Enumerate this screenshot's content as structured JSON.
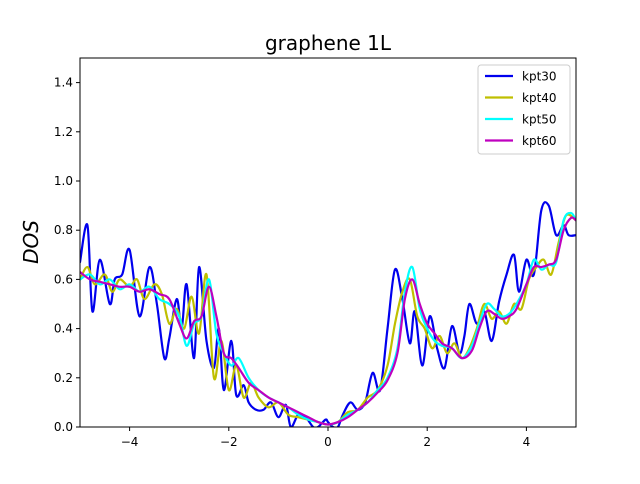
{
  "chart_data": {
    "type": "line",
    "title": "graphene 1L",
    "xlabel": "",
    "ylabel": "DOS",
    "xlim": [
      -5,
      5
    ],
    "ylim": [
      0,
      1.5
    ],
    "xticks": [
      -4,
      -2,
      0,
      2,
      4
    ],
    "xtick_labels": [
      "−4",
      "−2",
      "0",
      "2",
      "4"
    ],
    "yticks": [
      0.0,
      0.2,
      0.4,
      0.6,
      0.8,
      1.0,
      1.2,
      1.4
    ],
    "ytick_labels": [
      "0.0",
      "0.2",
      "0.4",
      "0.6",
      "0.8",
      "1.0",
      "1.2",
      "1.4"
    ],
    "grid": false,
    "legend_position": "top-right",
    "series": [
      {
        "name": "kpt30",
        "color": "#0000ee",
        "x": [
          -5.0,
          -4.85,
          -4.75,
          -4.6,
          -4.4,
          -4.3,
          -4.15,
          -4.0,
          -3.8,
          -3.6,
          -3.45,
          -3.3,
          -3.2,
          -3.05,
          -2.95,
          -2.85,
          -2.7,
          -2.6,
          -2.45,
          -2.3,
          -2.2,
          -2.1,
          -1.95,
          -1.85,
          -1.7,
          -1.6,
          -1.45,
          -1.3,
          -1.15,
          -1.0,
          -0.85,
          -0.75,
          -0.6,
          -0.45,
          -0.3,
          -0.2,
          -0.05,
          0.0,
          0.1,
          0.2,
          0.3,
          0.45,
          0.6,
          0.75,
          0.9,
          1.05,
          1.2,
          1.35,
          1.5,
          1.65,
          1.75,
          1.9,
          2.05,
          2.2,
          2.35,
          2.5,
          2.65,
          2.75,
          2.85,
          3.0,
          3.15,
          3.3,
          3.45,
          3.6,
          3.75,
          3.85,
          4.0,
          4.15,
          4.3,
          4.45,
          4.6,
          4.75,
          4.85,
          5.0
        ],
        "y": [
          0.67,
          0.82,
          0.47,
          0.68,
          0.5,
          0.6,
          0.62,
          0.72,
          0.45,
          0.65,
          0.5,
          0.28,
          0.36,
          0.52,
          0.4,
          0.58,
          0.28,
          0.65,
          0.35,
          0.24,
          0.4,
          0.15,
          0.35,
          0.13,
          0.17,
          0.1,
          0.07,
          0.07,
          0.1,
          0.04,
          0.09,
          0.0,
          0.05,
          0.04,
          0.0,
          0.0,
          0.03,
          0.02,
          0.0,
          0.0,
          0.05,
          0.1,
          0.07,
          0.1,
          0.22,
          0.15,
          0.4,
          0.64,
          0.52,
          0.34,
          0.47,
          0.25,
          0.45,
          0.32,
          0.24,
          0.41,
          0.3,
          0.37,
          0.5,
          0.42,
          0.47,
          0.35,
          0.51,
          0.62,
          0.7,
          0.55,
          0.68,
          0.62,
          0.88,
          0.9,
          0.78,
          0.82,
          0.78,
          0.78
        ]
      },
      {
        "name": "kpt40",
        "color": "#bfbf00",
        "x": [
          -5.0,
          -4.85,
          -4.7,
          -4.5,
          -4.35,
          -4.2,
          -4.0,
          -3.85,
          -3.7,
          -3.5,
          -3.35,
          -3.2,
          -3.05,
          -2.9,
          -2.75,
          -2.6,
          -2.45,
          -2.3,
          -2.15,
          -2.0,
          -1.85,
          -1.7,
          -1.55,
          -1.4,
          -1.2,
          -1.0,
          -0.8,
          -0.6,
          -0.4,
          -0.2,
          0.0,
          0.2,
          0.4,
          0.6,
          0.8,
          1.0,
          1.2,
          1.35,
          1.5,
          1.65,
          1.8,
          1.95,
          2.1,
          2.25,
          2.4,
          2.55,
          2.7,
          2.85,
          3.0,
          3.15,
          3.3,
          3.45,
          3.6,
          3.75,
          3.9,
          4.05,
          4.2,
          4.35,
          4.5,
          4.65,
          4.8,
          5.0
        ],
        "y": [
          0.6,
          0.65,
          0.58,
          0.62,
          0.55,
          0.6,
          0.57,
          0.6,
          0.52,
          0.58,
          0.54,
          0.42,
          0.48,
          0.4,
          0.53,
          0.38,
          0.62,
          0.2,
          0.35,
          0.15,
          0.25,
          0.12,
          0.18,
          0.12,
          0.08,
          0.1,
          0.05,
          0.04,
          0.03,
          0.02,
          0.01,
          0.02,
          0.06,
          0.07,
          0.12,
          0.15,
          0.25,
          0.42,
          0.55,
          0.6,
          0.45,
          0.4,
          0.32,
          0.37,
          0.3,
          0.34,
          0.28,
          0.32,
          0.4,
          0.5,
          0.44,
          0.47,
          0.42,
          0.5,
          0.48,
          0.6,
          0.65,
          0.68,
          0.62,
          0.75,
          0.86,
          0.84
        ]
      },
      {
        "name": "kpt50",
        "color": "#00ffff",
        "x": [
          -5.0,
          -4.8,
          -4.6,
          -4.4,
          -4.2,
          -4.0,
          -3.8,
          -3.6,
          -3.4,
          -3.2,
          -3.0,
          -2.85,
          -2.7,
          -2.55,
          -2.4,
          -2.25,
          -2.1,
          -1.95,
          -1.8,
          -1.6,
          -1.4,
          -1.2,
          -1.0,
          -0.8,
          -0.6,
          -0.4,
          -0.2,
          0.0,
          0.2,
          0.4,
          0.6,
          0.8,
          1.0,
          1.2,
          1.4,
          1.55,
          1.7,
          1.85,
          2.0,
          2.15,
          2.3,
          2.5,
          2.7,
          2.9,
          3.05,
          3.2,
          3.35,
          3.5,
          3.65,
          3.8,
          4.0,
          4.15,
          4.3,
          4.45,
          4.6,
          4.75,
          4.9,
          5.0
        ],
        "y": [
          0.6,
          0.62,
          0.58,
          0.6,
          0.56,
          0.58,
          0.55,
          0.57,
          0.52,
          0.5,
          0.45,
          0.33,
          0.42,
          0.45,
          0.6,
          0.38,
          0.3,
          0.25,
          0.28,
          0.2,
          0.15,
          0.12,
          0.1,
          0.08,
          0.05,
          0.03,
          0.02,
          0.01,
          0.02,
          0.05,
          0.07,
          0.1,
          0.15,
          0.2,
          0.32,
          0.55,
          0.65,
          0.48,
          0.4,
          0.35,
          0.33,
          0.32,
          0.28,
          0.33,
          0.42,
          0.5,
          0.48,
          0.45,
          0.46,
          0.5,
          0.58,
          0.68,
          0.64,
          0.66,
          0.67,
          0.84,
          0.87,
          0.84
        ]
      },
      {
        "name": "kpt60",
        "color": "#bf00bf",
        "x": [
          -5.0,
          -4.8,
          -4.6,
          -4.4,
          -4.2,
          -4.0,
          -3.8,
          -3.6,
          -3.4,
          -3.2,
          -3.0,
          -2.85,
          -2.7,
          -2.55,
          -2.4,
          -2.25,
          -2.1,
          -1.95,
          -1.8,
          -1.6,
          -1.4,
          -1.2,
          -1.0,
          -0.8,
          -0.6,
          -0.4,
          -0.2,
          0.0,
          0.2,
          0.4,
          0.6,
          0.8,
          1.0,
          1.2,
          1.4,
          1.55,
          1.7,
          1.85,
          2.0,
          2.15,
          2.3,
          2.5,
          2.7,
          2.9,
          3.05,
          3.2,
          3.35,
          3.5,
          3.65,
          3.8,
          4.0,
          4.15,
          4.3,
          4.45,
          4.6,
          4.75,
          4.9,
          5.0
        ],
        "y": [
          0.63,
          0.6,
          0.59,
          0.58,
          0.57,
          0.57,
          0.55,
          0.56,
          0.54,
          0.52,
          0.42,
          0.36,
          0.43,
          0.45,
          0.57,
          0.45,
          0.3,
          0.28,
          0.24,
          0.18,
          0.15,
          0.12,
          0.1,
          0.08,
          0.06,
          0.04,
          0.02,
          0.01,
          0.02,
          0.04,
          0.07,
          0.1,
          0.14,
          0.19,
          0.3,
          0.52,
          0.6,
          0.5,
          0.42,
          0.38,
          0.34,
          0.32,
          0.28,
          0.31,
          0.4,
          0.47,
          0.46,
          0.44,
          0.45,
          0.48,
          0.58,
          0.65,
          0.65,
          0.66,
          0.68,
          0.8,
          0.85,
          0.84
        ]
      }
    ]
  }
}
